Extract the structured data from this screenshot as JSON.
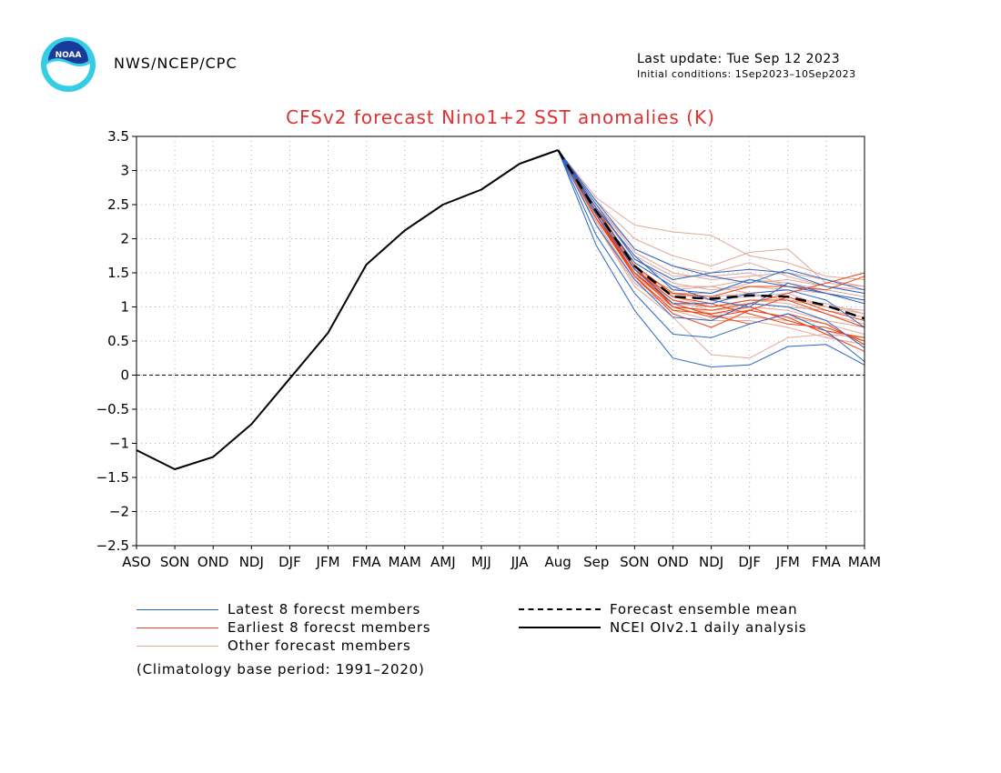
{
  "header": {
    "org": "NWS/NCEP/CPC",
    "last_update": "Last update: Tue Sep 12 2023",
    "initial_conditions": "Initial conditions: 1Sep2023–10Sep2023",
    "logo_text": "NOAA"
  },
  "legend": {
    "latest": "Latest 8 forecst members",
    "earliest": "Earliest 8 forecst members",
    "other": "Other forecast members",
    "mean": "Forecast ensemble mean",
    "analysis": "NCEI OIv2.1 daily analysis",
    "base_period": "(Climatology base period: 1991–2020)"
  },
  "colors": {
    "latest": "#2a64c8",
    "earliest": "#ee4010",
    "other": "#e2a898",
    "observed": "#000000",
    "title": "#e03030"
  },
  "chart_data": {
    "type": "line",
    "title": "CFSv2 forecast Nino1+2 SST anomalies (K)",
    "categories": [
      "ASO",
      "SON",
      "OND",
      "NDJ",
      "DJF",
      "JFM",
      "FMA",
      "MAM",
      "AMJ",
      "MJJ",
      "JJA",
      "Aug",
      "Sep",
      "SON",
      "OND",
      "NDJ",
      "DJF",
      "JFM",
      "FMA",
      "MAM"
    ],
    "ylim": [
      -2.5,
      3.5
    ],
    "yticks": [
      "3.5",
      "3",
      "2.5",
      "2",
      "1.5",
      "1",
      "0.5",
      "0",
      "-0.5",
      "-1",
      "-1.5",
      "-2",
      "-2.5"
    ],
    "grid": true,
    "observed": {
      "name": "NCEI OIv2.1 daily analysis",
      "x_start": 0,
      "values": [
        -1.1,
        -1.38,
        -1.2,
        -0.72,
        -0.05,
        0.62,
        1.62,
        2.12,
        2.5,
        2.72,
        3.1,
        3.3
      ]
    },
    "ensemble_mean": {
      "name": "Forecast ensemble mean",
      "x_start": 11,
      "values": [
        3.3,
        2.4,
        1.6,
        1.15,
        1.12,
        1.17,
        1.15,
        1.02,
        0.83
      ]
    },
    "latest_members": {
      "name": "Latest 8 forecst members",
      "x_start": 11,
      "series": [
        [
          3.3,
          1.9,
          0.95,
          0.25,
          0.12,
          0.15,
          0.42,
          0.45,
          0.15
        ],
        [
          3.3,
          2.05,
          1.2,
          0.6,
          0.55,
          0.75,
          0.9,
          0.65,
          0.2
        ],
        [
          3.3,
          2.2,
          1.4,
          0.85,
          0.8,
          1.05,
          1.0,
          0.8,
          0.4
        ],
        [
          3.3,
          2.35,
          1.55,
          1.05,
          1.05,
          1.2,
          1.25,
          1.1,
          0.7
        ],
        [
          3.3,
          2.45,
          1.75,
          1.25,
          1.2,
          1.4,
          1.3,
          1.2,
          1.05
        ],
        [
          3.3,
          2.5,
          1.7,
          1.4,
          1.5,
          1.55,
          1.5,
          1.3,
          1.2
        ],
        [
          3.3,
          2.55,
          1.85,
          1.6,
          1.45,
          1.35,
          1.55,
          1.4,
          1.25
        ],
        [
          3.3,
          2.4,
          1.65,
          1.3,
          1.1,
          1.0,
          1.35,
          1.2,
          1.1
        ]
      ]
    },
    "earliest_members": {
      "name": "Earliest 8 forecst members",
      "x_start": 11,
      "series": [
        [
          3.3,
          2.3,
          1.45,
          0.95,
          0.9,
          1.0,
          0.8,
          0.65,
          0.55
        ],
        [
          3.3,
          2.35,
          1.5,
          1.05,
          0.88,
          0.75,
          0.9,
          0.75,
          0.45
        ],
        [
          3.3,
          2.4,
          1.55,
          1.1,
          1.0,
          1.1,
          1.1,
          0.9,
          0.7
        ],
        [
          3.3,
          2.45,
          1.6,
          1.2,
          1.15,
          1.3,
          1.3,
          1.25,
          1.45
        ],
        [
          3.3,
          2.35,
          1.45,
          0.9,
          0.7,
          0.95,
          0.85,
          0.6,
          0.35
        ],
        [
          3.3,
          2.45,
          1.6,
          1.0,
          0.95,
          1.05,
          1.2,
          1.35,
          1.5
        ],
        [
          3.3,
          2.3,
          1.5,
          1.0,
          0.85,
          0.95,
          1.15,
          0.95,
          0.8
        ],
        [
          3.3,
          2.4,
          1.55,
          1.15,
          1.05,
          0.9,
          0.75,
          0.7,
          0.5
        ]
      ]
    },
    "other_members": {
      "name": "Other forecast members",
      "x_start": 11,
      "series": [
        [
          3.3,
          2.6,
          2.2,
          2.1,
          2.05,
          1.75,
          1.65,
          1.45,
          1.4
        ],
        [
          3.3,
          2.55,
          2.0,
          1.75,
          1.6,
          1.8,
          1.85,
          1.35,
          1.3
        ],
        [
          3.3,
          2.5,
          1.85,
          1.6,
          1.5,
          1.65,
          1.45,
          1.3,
          1.2
        ],
        [
          3.3,
          2.45,
          1.75,
          1.45,
          1.45,
          1.5,
          1.3,
          1.2,
          1.1
        ],
        [
          3.3,
          2.45,
          1.7,
          1.35,
          1.25,
          1.3,
          1.25,
          1.2,
          1.05
        ],
        [
          3.3,
          2.4,
          1.65,
          1.3,
          1.3,
          1.2,
          1.1,
          1.05,
          0.9
        ],
        [
          3.3,
          2.4,
          1.6,
          1.2,
          1.1,
          1.15,
          1.2,
          1.0,
          0.95
        ],
        [
          3.3,
          2.35,
          1.55,
          1.15,
          1.0,
          1.05,
          1.0,
          0.95,
          0.85
        ],
        [
          3.3,
          2.3,
          1.5,
          1.1,
          0.95,
          1.0,
          0.95,
          0.8,
          0.7
        ],
        [
          3.3,
          2.3,
          1.45,
          1.05,
          0.9,
          0.95,
          0.85,
          0.75,
          0.6
        ],
        [
          3.3,
          2.25,
          1.4,
          1.0,
          0.85,
          0.85,
          0.8,
          0.65,
          0.5
        ],
        [
          3.3,
          2.2,
          1.35,
          0.95,
          0.8,
          0.8,
          0.7,
          0.55,
          0.45
        ],
        [
          3.3,
          2.2,
          1.3,
          0.85,
          0.3,
          0.25,
          0.55,
          0.6,
          0.55
        ],
        [
          3.3,
          2.3,
          1.45,
          1.2,
          1.2,
          1.35,
          1.4,
          1.3,
          1.25
        ],
        [
          3.3,
          2.35,
          1.5,
          1.25,
          1.3,
          1.4,
          1.35,
          1.25,
          1.15
        ],
        [
          3.3,
          2.5,
          1.8,
          1.5,
          1.4,
          1.45,
          1.5,
          1.4,
          1.3
        ],
        [
          3.3,
          2.28,
          1.48,
          1.05,
          1.0,
          1.1,
          1.05,
          0.9,
          0.75
        ],
        [
          3.3,
          2.38,
          1.58,
          1.18,
          1.15,
          1.2,
          1.1,
          1.0,
          0.9
        ]
      ]
    }
  }
}
